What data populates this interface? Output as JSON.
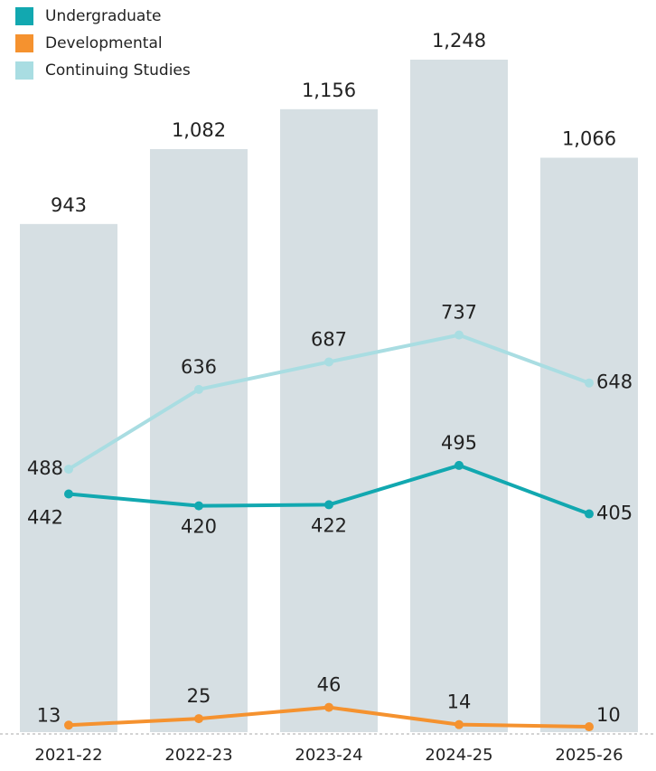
{
  "chart_data": {
    "type": "bar_line",
    "categories": [
      "2021-22",
      "2022-23",
      "2023-24",
      "2024-25",
      "2025-26"
    ],
    "bar_values": [
      943,
      1082,
      1156,
      1248,
      1066
    ],
    "bar_value_labels": [
      "943",
      "1,082",
      "1,156",
      "1,248",
      "1,066"
    ],
    "bar_color": "#d6dfe3",
    "series": [
      {
        "name": "Undergraduate",
        "color": "#12a8b0",
        "values": [
          442,
          420,
          422,
          495,
          405
        ]
      },
      {
        "name": "Developmental",
        "color": "#f5922f",
        "values": [
          13,
          25,
          46,
          14,
          10
        ]
      },
      {
        "name": "Continuing Studies",
        "color": "#a9dde2",
        "values": [
          488,
          636,
          687,
          737,
          648
        ]
      }
    ]
  }
}
